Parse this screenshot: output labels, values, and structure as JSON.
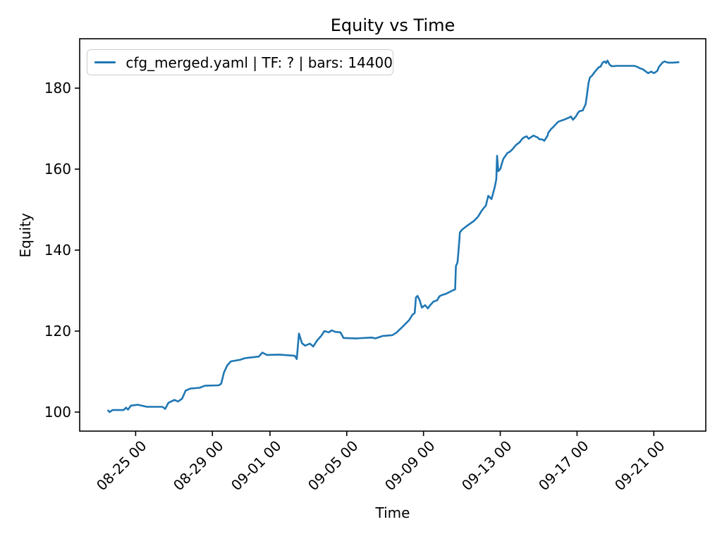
{
  "figure": {
    "title": "Equity vs Time",
    "xlabel": "Time",
    "ylabel": "Equity"
  },
  "chart_data": {
    "type": "line",
    "title": "Equity vs Time",
    "xlabel": "Time",
    "ylabel": "Equity",
    "grid": false,
    "legend_position": "upper left",
    "x_tick_labels": [
      "08-25 00",
      "08-29 00",
      "09-01 00",
      "09-05 00",
      "09-09 00",
      "09-13 00",
      "09-17 00",
      "09-21 00"
    ],
    "y_ticks": [
      100,
      120,
      140,
      160,
      180
    ],
    "xlim": [
      "08-22 02:00",
      "09-23 17:00"
    ],
    "ylim": [
      95.3,
      192.2
    ],
    "series": [
      {
        "name": "cfg_merged.yaml | TF: ? | bars: 14400",
        "color": "#1f77b4",
        "points": [
          [
            "08-23 13:40",
            100.4
          ],
          [
            "08-23 15:30",
            100.0
          ],
          [
            "08-23 19:00",
            100.5
          ],
          [
            "08-24 09:00",
            100.5
          ],
          [
            "08-24 12:00",
            101.1
          ],
          [
            "08-24 14:30",
            100.6
          ],
          [
            "08-24 18:00",
            101.6
          ],
          [
            "08-25 03:00",
            101.8
          ],
          [
            "08-25 14:00",
            101.3
          ],
          [
            "08-26 09:30",
            101.3
          ],
          [
            "08-26 13:00",
            100.8
          ],
          [
            "08-26 17:00",
            102.3
          ],
          [
            "08-27 00:30",
            103.0
          ],
          [
            "08-27 05:00",
            102.6
          ],
          [
            "08-27 10:00",
            103.3
          ],
          [
            "08-27 14:30",
            105.3
          ],
          [
            "08-27 20:30",
            105.8
          ],
          [
            "08-28 08:00",
            106.0
          ],
          [
            "08-28 14:30",
            106.5
          ],
          [
            "08-29 08:00",
            106.6
          ],
          [
            "08-29 11:00",
            107.0
          ],
          [
            "08-29 14:30",
            109.8
          ],
          [
            "08-29 18:30",
            111.5
          ],
          [
            "08-29 23:00",
            112.5
          ],
          [
            "08-30 04:00",
            112.7
          ],
          [
            "08-30 10:30",
            112.9
          ],
          [
            "08-30 16:30",
            113.3
          ],
          [
            "08-31 00:00",
            113.5
          ],
          [
            "08-31 10:00",
            113.7
          ],
          [
            "08-31 14:30",
            114.7
          ],
          [
            "08-31 20:00",
            114.1
          ],
          [
            "09-01 12:00",
            114.2
          ],
          [
            "09-02 07:00",
            113.9
          ],
          [
            "09-02 09:30",
            113.1
          ],
          [
            "09-02 12:15",
            119.4
          ],
          [
            "09-02 16:00",
            117.0
          ],
          [
            "09-02 20:00",
            116.4
          ],
          [
            "09-03 02:00",
            116.9
          ],
          [
            "09-03 06:00",
            116.2
          ],
          [
            "09-03 11:00",
            117.7
          ],
          [
            "09-03 16:00",
            118.8
          ],
          [
            "09-03 20:00",
            120.0
          ],
          [
            "09-04 02:00",
            119.7
          ],
          [
            "09-04 05:00",
            120.2
          ],
          [
            "09-04 10:00",
            119.8
          ],
          [
            "09-04 16:00",
            119.7
          ],
          [
            "09-04 20:00",
            118.3
          ],
          [
            "09-05 12:00",
            118.2
          ],
          [
            "09-06 07:00",
            118.4
          ],
          [
            "09-06 12:00",
            118.2
          ],
          [
            "09-06 21:00",
            118.8
          ],
          [
            "09-07 09:00",
            119.0
          ],
          [
            "09-07 14:00",
            119.6
          ],
          [
            "09-07 21:00",
            120.9
          ],
          [
            "09-08 01:00",
            121.7
          ],
          [
            "09-08 06:00",
            122.7
          ],
          [
            "09-08 10:00",
            124.0
          ],
          [
            "09-08 13:00",
            124.5
          ],
          [
            "09-08 14:30",
            128.3
          ],
          [
            "09-08 16:30",
            128.7
          ],
          [
            "09-08 19:00",
            127.7
          ],
          [
            "09-08 22:00",
            125.8
          ],
          [
            "09-09 02:00",
            126.4
          ],
          [
            "09-09 05:30",
            125.6
          ],
          [
            "09-09 08:00",
            126.3
          ],
          [
            "09-09 12:30",
            127.3
          ],
          [
            "09-09 17:00",
            127.6
          ],
          [
            "09-09 20:00",
            128.6
          ],
          [
            "09-09 23:00",
            128.9
          ],
          [
            "09-10 04:00",
            129.2
          ],
          [
            "09-10 09:00",
            129.7
          ],
          [
            "09-10 13:00",
            130.1
          ],
          [
            "09-10 15:30",
            130.3
          ],
          [
            "09-10 16:30",
            136.0
          ],
          [
            "09-10 18:30",
            137.0
          ],
          [
            "09-10 20:00",
            140.5
          ],
          [
            "09-10 21:30",
            144.4
          ],
          [
            "09-11 00:00",
            145.0
          ],
          [
            "09-11 05:00",
            145.8
          ],
          [
            "09-11 10:00",
            146.5
          ],
          [
            "09-11 15:00",
            147.2
          ],
          [
            "09-11 20:00",
            148.2
          ],
          [
            "09-12 00:00",
            149.5
          ],
          [
            "09-12 03:00",
            150.3
          ],
          [
            "09-12 06:00",
            151.0
          ],
          [
            "09-12 09:00",
            153.4
          ],
          [
            "09-12 13:00",
            152.6
          ],
          [
            "09-12 17:00",
            155.5
          ],
          [
            "09-12 19:00",
            157.5
          ],
          [
            "09-12 20:00",
            163.3
          ],
          [
            "09-12 21:30",
            159.5
          ],
          [
            "09-13 00:15",
            160.1
          ],
          [
            "09-13 02:00",
            161.4
          ],
          [
            "09-13 04:00",
            162.6
          ],
          [
            "09-13 07:15",
            163.5
          ],
          [
            "09-13 09:00",
            164.0
          ],
          [
            "09-13 12:00",
            164.3
          ],
          [
            "09-13 15:15",
            164.9
          ],
          [
            "09-13 18:00",
            165.6
          ],
          [
            "09-13 20:30",
            166.1
          ],
          [
            "09-14 00:00",
            166.6
          ],
          [
            "09-14 02:40",
            167.3
          ],
          [
            "09-14 05:15",
            167.8
          ],
          [
            "09-14 09:00",
            168.1
          ],
          [
            "09-14 11:30",
            167.5
          ],
          [
            "09-14 17:30",
            168.3
          ],
          [
            "09-14 23:00",
            167.8
          ],
          [
            "09-15 00:40",
            167.4
          ],
          [
            "09-15 05:00",
            167.3
          ],
          [
            "09-15 07:00",
            167.0
          ],
          [
            "09-15 11:15",
            168.3
          ],
          [
            "09-15 12:00",
            169.0
          ],
          [
            "09-15 15:30",
            169.9
          ],
          [
            "09-15 18:15",
            170.4
          ],
          [
            "09-15 21:00",
            171.0
          ],
          [
            "09-16 00:30",
            171.7
          ],
          [
            "09-16 03:00",
            171.9
          ],
          [
            "09-16 07:30",
            172.2
          ],
          [
            "09-16 13:40",
            172.7
          ],
          [
            "09-16 16:20",
            173.0
          ],
          [
            "09-16 19:00",
            172.2
          ],
          [
            "09-16 22:30",
            173.0
          ],
          [
            "09-17 01:10",
            173.9
          ],
          [
            "09-17 03:00",
            174.3
          ],
          [
            "09-17 07:15",
            174.5
          ],
          [
            "09-17 09:00",
            175.3
          ],
          [
            "09-17 10:45",
            176.0
          ],
          [
            "09-17 12:30",
            178.5
          ],
          [
            "09-17 14:20",
            181.3
          ],
          [
            "09-17 16:00",
            182.6
          ],
          [
            "09-17 18:45",
            183.1
          ],
          [
            "09-17 21:20",
            183.8
          ],
          [
            "09-18 01:00",
            184.7
          ],
          [
            "09-18 03:30",
            185.2
          ],
          [
            "09-18 05:20",
            185.3
          ],
          [
            "09-18 08:00",
            186.3
          ],
          [
            "09-18 10:30",
            186.6
          ],
          [
            "09-18 12:20",
            186.2
          ],
          [
            "09-18 14:00",
            186.8
          ],
          [
            "09-18 16:45",
            185.8
          ],
          [
            "09-18 19:30",
            185.4
          ],
          [
            "09-19 01:30",
            185.5
          ],
          [
            "09-19 23:30",
            185.5
          ],
          [
            "09-20 04:00",
            185.2
          ],
          [
            "09-20 06:40",
            184.9
          ],
          [
            "09-20 10:00",
            184.7
          ],
          [
            "09-20 12:45",
            184.3
          ],
          [
            "09-20 17:00",
            183.7
          ],
          [
            "09-20 20:40",
            184.1
          ],
          [
            "09-21 00:10",
            183.7
          ],
          [
            "09-21 04:30",
            184.3
          ],
          [
            "09-21 06:15",
            185.2
          ],
          [
            "09-21 10:45",
            186.3
          ],
          [
            "09-21 13:20",
            186.6
          ],
          [
            "09-21 17:45",
            186.3
          ],
          [
            "09-22 00:00",
            186.3
          ],
          [
            "09-22 07:00",
            186.4
          ]
        ]
      }
    ]
  }
}
